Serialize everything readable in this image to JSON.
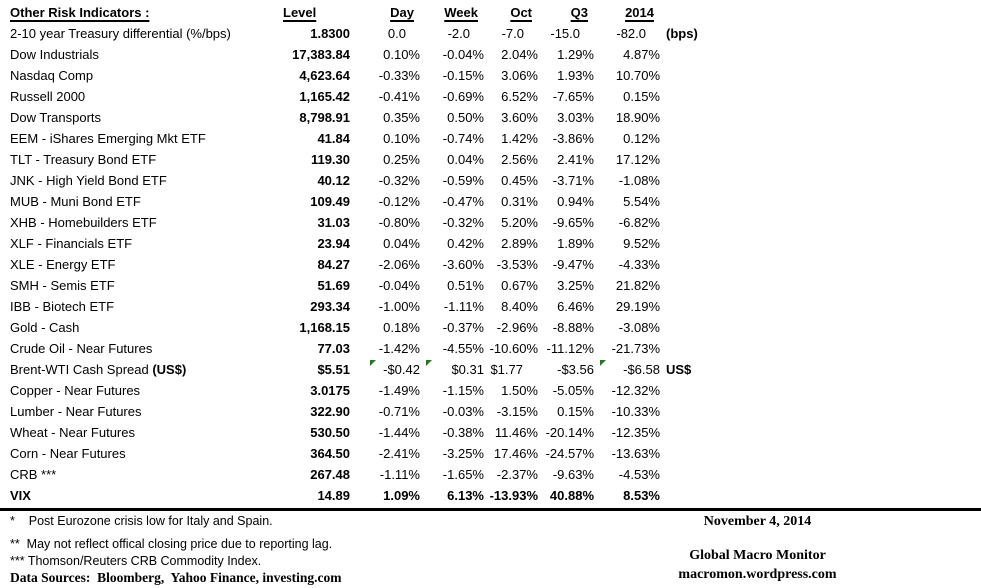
{
  "colors": {
    "flag_green": "#1e7e1e",
    "text": "#000000",
    "background": "#ffffff"
  },
  "table": {
    "title": "Other Risk Indicators :",
    "columns": [
      "Level",
      "Day",
      "Week",
      "Oct",
      "Q3",
      "2014"
    ],
    "rows": [
      {
        "label": "2-10 year Treasury differential (%/bps)",
        "level": "1.8300",
        "day": "0.0",
        "week": "-2.0",
        "oct": "-7.0",
        "q3": "-15.0",
        "y2014": "-82.0",
        "suffix": "(bps)",
        "pad_percent": true
      },
      {
        "label": "Dow Industrials",
        "level": "17,383.84",
        "day": "0.10%",
        "week": "-0.04%",
        "oct": "2.04%",
        "q3": "1.29%",
        "y2014": "4.87%"
      },
      {
        "label": "Nasdaq Comp",
        "level": "4,623.64",
        "day": "-0.33%",
        "week": "-0.15%",
        "oct": "3.06%",
        "q3": "1.93%",
        "y2014": "10.70%"
      },
      {
        "label": "Russell 2000",
        "level": "1,165.42",
        "day": "-0.41%",
        "week": "-0.69%",
        "oct": "6.52%",
        "q3": "-7.65%",
        "y2014": "0.15%"
      },
      {
        "label": "Dow Transports",
        "level": "8,798.91",
        "day": "0.35%",
        "week": "0.50%",
        "oct": "3.60%",
        "q3": "3.03%",
        "y2014": "18.90%"
      },
      {
        "label": "EEM - iShares Emerging Mkt ETF",
        "level": "41.84",
        "day": "0.10%",
        "week": "-0.74%",
        "oct": "1.42%",
        "q3": "-3.86%",
        "y2014": "0.12%"
      },
      {
        "label": "TLT - Treasury Bond ETF",
        "level": "119.30",
        "day": "0.25%",
        "week": "0.04%",
        "oct": "2.56%",
        "q3": "2.41%",
        "y2014": "17.12%"
      },
      {
        "label": "JNK - High Yield Bond ETF",
        "level": "40.12",
        "day": "-0.32%",
        "week": "-0.59%",
        "oct": "0.45%",
        "q3": "-3.71%",
        "y2014": "-1.08%"
      },
      {
        "label": "MUB - Muni Bond ETF",
        "level": "109.49",
        "day": "-0.12%",
        "week": "-0.47%",
        "oct": "0.31%",
        "q3": "0.94%",
        "y2014": "5.54%"
      },
      {
        "label": "XHB - Homebuilders ETF",
        "level": "31.03",
        "day": "-0.80%",
        "week": "-0.32%",
        "oct": "5.20%",
        "q3": "-9.65%",
        "y2014": "-6.82%"
      },
      {
        "label": "XLF - Financials ETF",
        "level": "23.94",
        "day": "0.04%",
        "week": "0.42%",
        "oct": "2.89%",
        "q3": "1.89%",
        "y2014": "9.52%"
      },
      {
        "label": "XLE - Energy ETF",
        "level": "84.27",
        "day": "-2.06%",
        "week": "-3.60%",
        "oct": "-3.53%",
        "q3": "-9.47%",
        "y2014": "-4.33%"
      },
      {
        "label": "SMH - Semis ETF",
        "level": "51.69",
        "day": "-0.04%",
        "week": "0.51%",
        "oct": "0.67%",
        "q3": "3.25%",
        "y2014": "21.82%"
      },
      {
        "label": "IBB - Biotech ETF",
        "level": "293.34",
        "day": "-1.00%",
        "week": "-1.11%",
        "oct": "8.40%",
        "q3": "6.46%",
        "y2014": "29.19%"
      },
      {
        "label": "Gold - Cash",
        "level": "1,168.15",
        "day": "0.18%",
        "week": "-0.37%",
        "oct": "-2.96%",
        "q3": "-8.88%",
        "y2014": "-3.08%"
      },
      {
        "label": "Crude Oil - Near Futures",
        "level": "77.03",
        "day": "-1.42%",
        "week": "-4.55%",
        "oct": "-10.60%",
        "q3": "-11.12%",
        "y2014": "-21.73%"
      },
      {
        "label": "Brent-WTI Cash Spread ",
        "label_bold": "(US$)",
        "level": "$5.51",
        "day": "-$0.42",
        "week": "$0.31",
        "oct": "$1.77",
        "q3": "-$3.56",
        "y2014": "-$6.58",
        "suffix": "US$",
        "flags": [
          "day",
          "week",
          "y2014"
        ],
        "pads": [
          "oct"
        ]
      },
      {
        "label": "Copper - Near Futures",
        "level": "3.0175",
        "day": "-1.49%",
        "week": "-1.15%",
        "oct": "1.50%",
        "q3": "-5.05%",
        "y2014": "-12.32%"
      },
      {
        "label": "Lumber - Near Futures",
        "level": "322.90",
        "day": "-0.71%",
        "week": "-0.03%",
        "oct": "-3.15%",
        "q3": "0.15%",
        "y2014": "-10.33%"
      },
      {
        "label": "Wheat - Near Futures",
        "level": "530.50",
        "day": "-1.44%",
        "week": "-0.38%",
        "oct": "11.46%",
        "q3": "-20.14%",
        "y2014": "-12.35%"
      },
      {
        "label": "Corn - Near Futures",
        "level": "364.50",
        "day": "-2.41%",
        "week": "-3.25%",
        "oct": "17.46%",
        "q3": "-24.57%",
        "y2014": "-13.63%"
      },
      {
        "label": "CRB ***",
        "level": "267.48",
        "day": "-1.11%",
        "week": "-1.65%",
        "oct": "-2.37%",
        "q3": "-9.63%",
        "y2014": "-4.53%"
      },
      {
        "label": "VIX",
        "level": "14.89",
        "day": "1.09%",
        "week": "6.13%",
        "oct": "-13.93%",
        "q3": "40.88%",
        "y2014": "8.53%",
        "bold": true
      }
    ]
  },
  "footnotes": {
    "fn1": "*    Post Eurozone crisis low for Italy and Spain.",
    "fn2": "**  May not reflect offical closing price due to reporting lag.",
    "fn3": "*** Thomson/Reuters CRB Commodity Index.",
    "sources": "Data Sources:  Bloomberg,  Yahoo Finance, investing.com"
  },
  "right_footer": {
    "date": "November 4, 2014",
    "brand": "Global Macro Monitor",
    "site": "macromon.wordpress.com"
  }
}
